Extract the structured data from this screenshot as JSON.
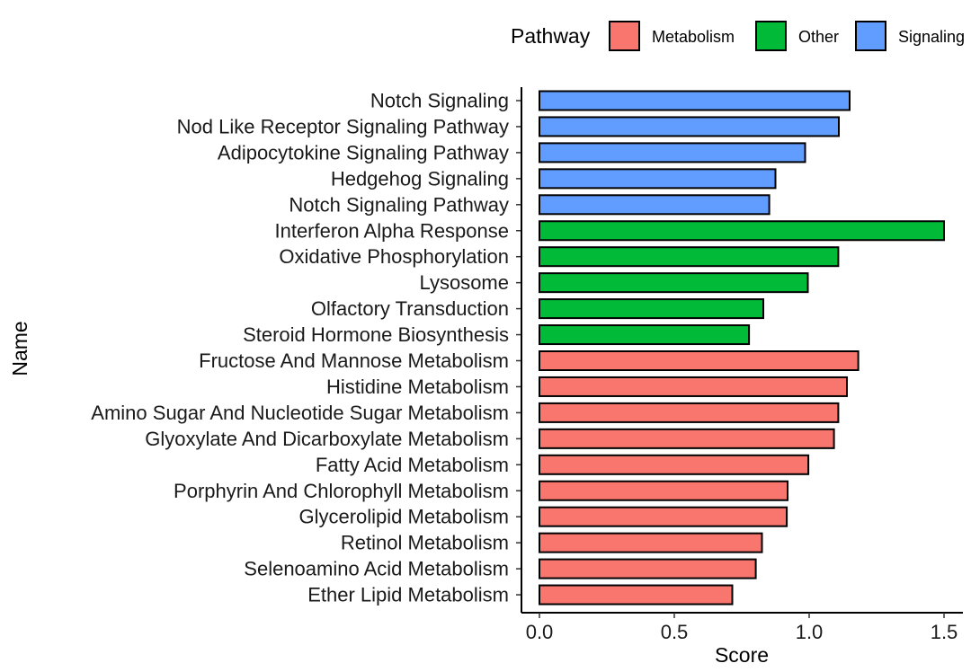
{
  "chart_data": {
    "type": "bar",
    "orientation": "horizontal",
    "xlabel": "Score",
    "ylabel": "Name",
    "xlim": [
      0,
      1.5
    ],
    "x_ticks": [
      "0.0",
      "0.5",
      "1.0",
      "1.5"
    ],
    "grid": false,
    "legend": {
      "title": "Pathway",
      "position": "top",
      "entries": [
        {
          "name": "Metabolism",
          "color": "#F8766D"
        },
        {
          "name": "Other",
          "color": "#00BA38"
        },
        {
          "name": "Signaling",
          "color": "#619CFF"
        }
      ]
    },
    "bars": [
      {
        "label": "Notch Signaling",
        "value": 1.15,
        "group": "Signaling"
      },
      {
        "label": "Nod Like Receptor Signaling Pathway",
        "value": 1.11,
        "group": "Signaling"
      },
      {
        "label": "Adipocytokine Signaling Pathway",
        "value": 0.985,
        "group": "Signaling"
      },
      {
        "label": "Hedgehog Signaling",
        "value": 0.875,
        "group": "Signaling"
      },
      {
        "label": "Notch Signaling Pathway",
        "value": 0.852,
        "group": "Signaling"
      },
      {
        "label": "Interferon Alpha Response",
        "value": 1.5,
        "group": "Other"
      },
      {
        "label": "Oxidative Phosphorylation",
        "value": 1.108,
        "group": "Other"
      },
      {
        "label": "Lysosome",
        "value": 0.995,
        "group": "Other"
      },
      {
        "label": "Olfactory Transduction",
        "value": 0.83,
        "group": "Other"
      },
      {
        "label": "Steroid Hormone Biosynthesis",
        "value": 0.777,
        "group": "Other"
      },
      {
        "label": "Fructose And Mannose Metabolism",
        "value": 1.182,
        "group": "Metabolism"
      },
      {
        "label": "Histidine Metabolism",
        "value": 1.14,
        "group": "Metabolism"
      },
      {
        "label": "Amino Sugar And Nucleotide Sugar Metabolism",
        "value": 1.108,
        "group": "Metabolism"
      },
      {
        "label": "Glyoxylate And Dicarboxylate Metabolism",
        "value": 1.092,
        "group": "Metabolism"
      },
      {
        "label": "Fatty Acid Metabolism",
        "value": 0.997,
        "group": "Metabolism"
      },
      {
        "label": "Porphyrin And Chlorophyll Metabolism",
        "value": 0.92,
        "group": "Metabolism"
      },
      {
        "label": "Glycerolipid Metabolism",
        "value": 0.917,
        "group": "Metabolism"
      },
      {
        "label": "Retinol Metabolism",
        "value": 0.825,
        "group": "Metabolism"
      },
      {
        "label": "Selenoamino Acid Metabolism",
        "value": 0.802,
        "group": "Metabolism"
      },
      {
        "label": "Ether Lipid Metabolism",
        "value": 0.715,
        "group": "Metabolism"
      }
    ]
  }
}
